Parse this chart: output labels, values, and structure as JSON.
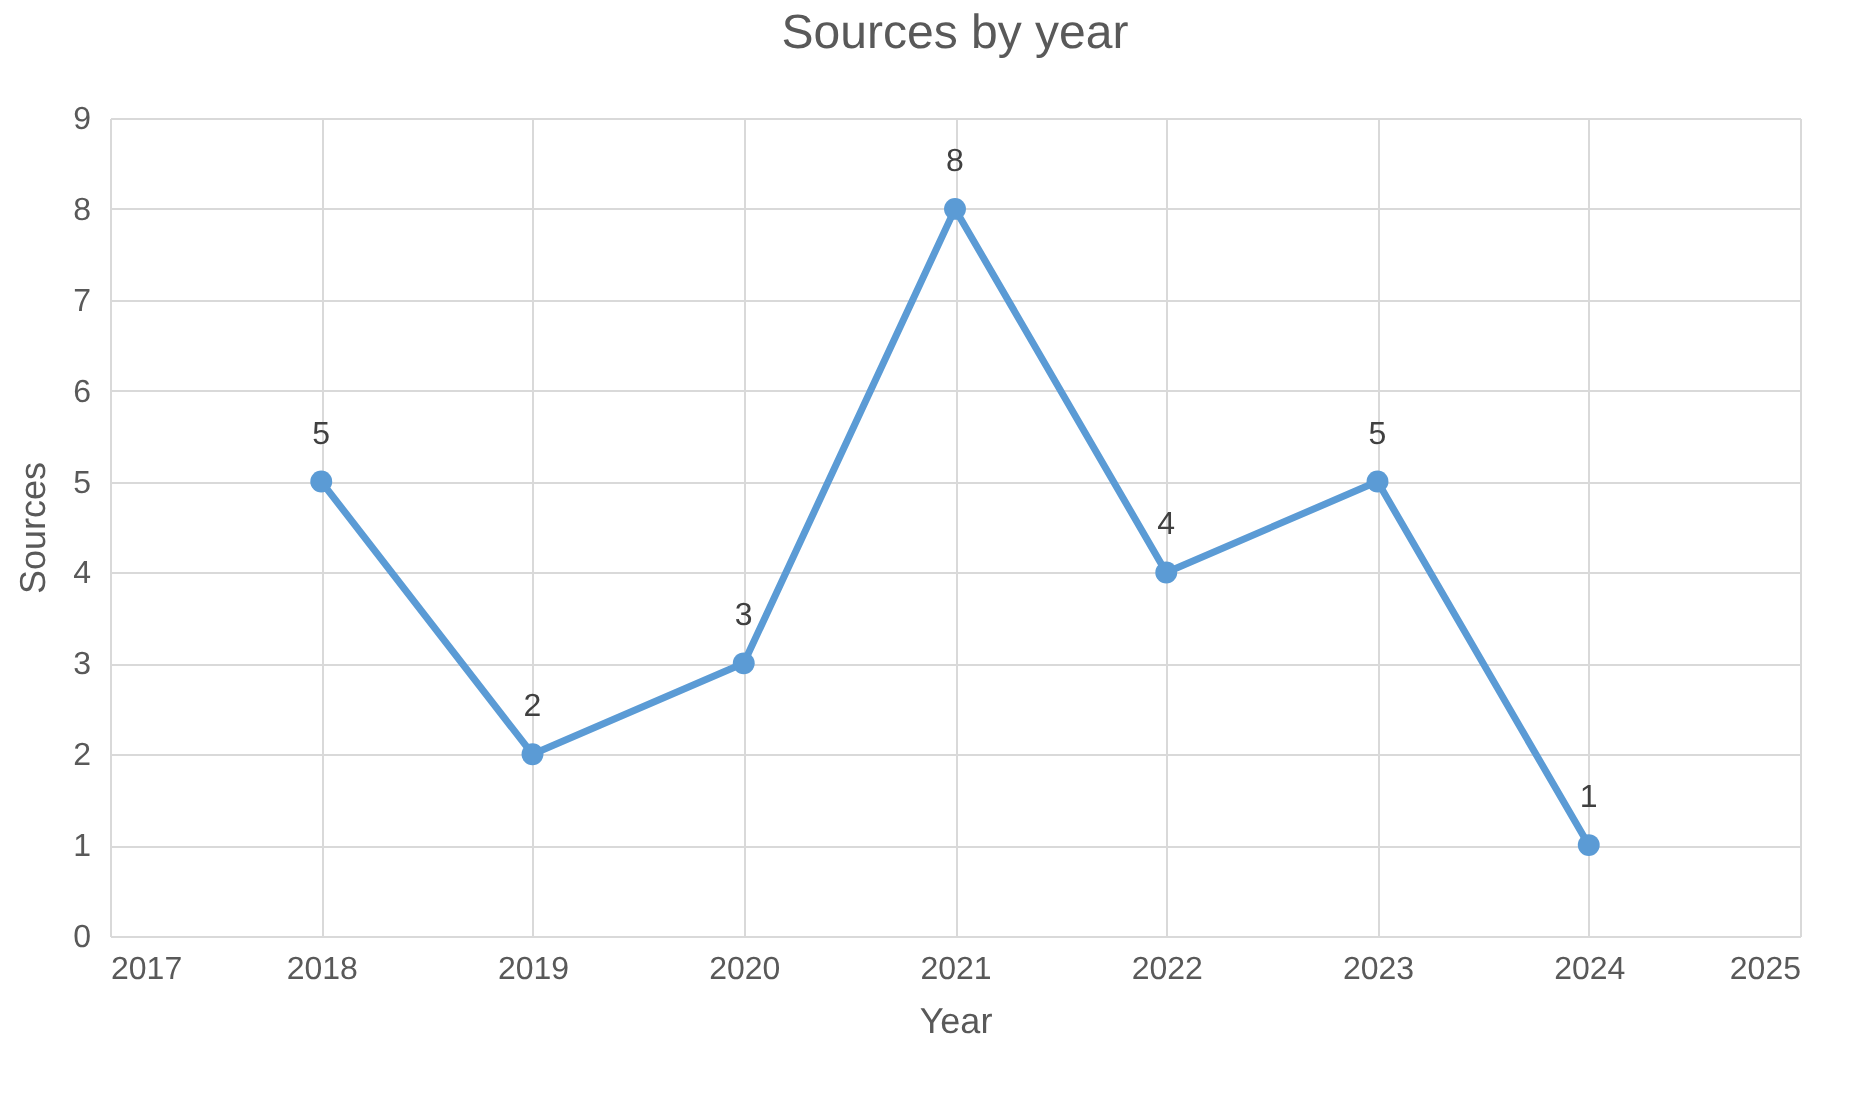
{
  "chart_data": {
    "type": "line",
    "title": "Sources by year",
    "xlabel": "Year",
    "ylabel": "Sources",
    "x": [
      2018,
      2019,
      2020,
      2021,
      2022,
      2023,
      2024
    ],
    "series": [
      {
        "color": "#5b9bd5",
        "values": [
          5,
          2,
          3,
          8,
          4,
          5,
          1
        ]
      }
    ],
    "xlim": [
      2017,
      2025
    ],
    "xticks": [
      2017,
      2018,
      2019,
      2020,
      2021,
      2022,
      2023,
      2024,
      2025
    ],
    "ylim": [
      0,
      9
    ],
    "yticks": [
      0,
      1,
      2,
      3,
      4,
      5,
      6,
      7,
      8,
      9
    ],
    "grid": true,
    "marker": "circle",
    "line_style": "solid",
    "data_labels": true
  }
}
